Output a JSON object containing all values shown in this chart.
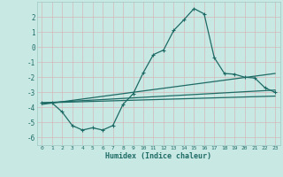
{
  "xlabel": "Humidex (Indice chaleur)",
  "bg_color": "#c8e8e4",
  "line_color": "#1e6b65",
  "grid_color": "#b0d8d4",
  "xlim": [
    -0.5,
    23.5
  ],
  "ylim": [
    -6.5,
    3.0
  ],
  "yticks": [
    -6,
    -5,
    -4,
    -3,
    -2,
    -1,
    0,
    1,
    2
  ],
  "xticks": [
    0,
    1,
    2,
    3,
    4,
    5,
    6,
    7,
    8,
    9,
    10,
    11,
    12,
    13,
    14,
    15,
    16,
    17,
    18,
    19,
    20,
    21,
    22,
    23
  ],
  "main_x": [
    0,
    1,
    2,
    3,
    4,
    5,
    6,
    7,
    8,
    9,
    10,
    11,
    12,
    13,
    14,
    15,
    16,
    17,
    18,
    19,
    20,
    21,
    22,
    23
  ],
  "main_y": [
    -3.7,
    -3.7,
    -4.3,
    -5.2,
    -5.5,
    -5.35,
    -5.5,
    -5.2,
    -3.8,
    -3.1,
    -1.7,
    -0.5,
    -0.2,
    1.1,
    1.8,
    2.55,
    2.2,
    -0.7,
    -1.75,
    -1.8,
    -2.0,
    -2.05,
    -2.7,
    -3.0
  ],
  "trend1_x": [
    0,
    23
  ],
  "trend1_y": [
    -3.8,
    -1.75
  ],
  "trend2_x": [
    0,
    23
  ],
  "trend2_y": [
    -3.7,
    -2.85
  ],
  "trend3_x": [
    0,
    23
  ],
  "trend3_y": [
    -3.7,
    -3.25
  ]
}
